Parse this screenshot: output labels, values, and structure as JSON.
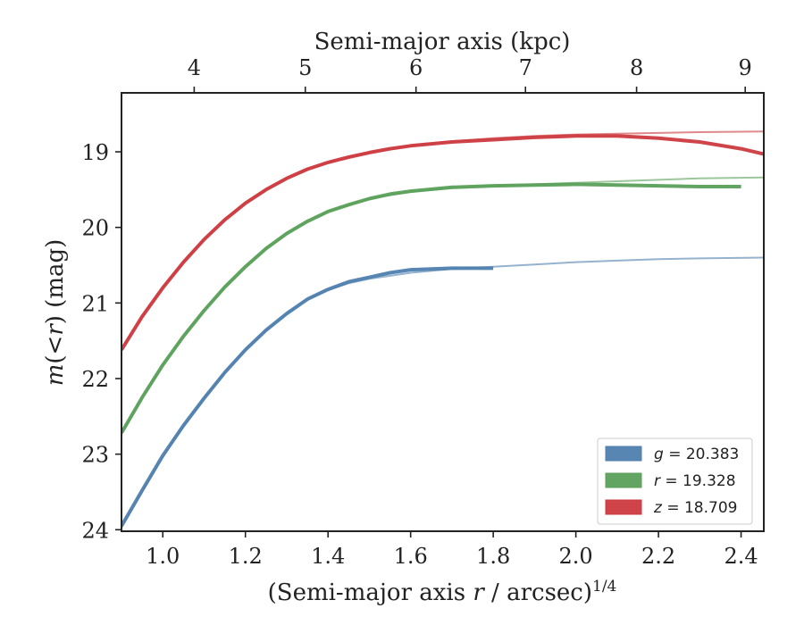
{
  "chart_data": {
    "type": "line",
    "xlabel": "(Semi-major axis r / arcsec)",
    "xlabel_sup": "1/4",
    "ylabel": "m(<r) (mag)",
    "top_xlabel": "Semi-major axis (kpc)",
    "xlim": [
      0.9,
      2.455
    ],
    "ylim": [
      24.02,
      18.22
    ],
    "y_inverted": true,
    "x_ticks": [
      1.0,
      1.2,
      1.4,
      1.6,
      1.8,
      2.0,
      2.2,
      2.4
    ],
    "x_tick_labels": [
      "1.0",
      "1.2",
      "1.4",
      "1.6",
      "1.8",
      "2.0",
      "2.2",
      "2.4"
    ],
    "y_ticks": [
      19,
      20,
      21,
      22,
      23,
      24
    ],
    "y_tick_labels": [
      "19",
      "20",
      "21",
      "22",
      "23",
      "24"
    ],
    "top_ticks": [
      4,
      5,
      6,
      7,
      8,
      9
    ],
    "top_tick_labels": [
      "4",
      "5",
      "6",
      "7",
      "8",
      "9"
    ],
    "top_ticks_x": [
      1.076,
      1.345,
      1.613,
      1.878,
      2.147,
      2.41
    ],
    "legend_position": "lower-right",
    "grid": false,
    "series": [
      {
        "name": "g = 20.383",
        "symbol": "g",
        "value": "20.383",
        "color": "#4f7faf",
        "band_width": 4,
        "x": [
          0.9,
          0.95,
          1.0,
          1.05,
          1.1,
          1.15,
          1.2,
          1.25,
          1.3,
          1.35,
          1.4,
          1.45,
          1.5,
          1.55,
          1.6,
          1.65,
          1.7,
          1.75,
          1.8
        ],
        "y": [
          23.95,
          23.48,
          23.02,
          22.62,
          22.26,
          21.92,
          21.62,
          21.36,
          21.14,
          20.95,
          20.82,
          20.72,
          20.66,
          20.6,
          20.56,
          20.55,
          20.54,
          20.54,
          20.54
        ],
        "model_x": [
          0.9,
          0.95,
          1.0,
          1.05,
          1.1,
          1.15,
          1.2,
          1.25,
          1.3,
          1.35,
          1.4,
          1.45,
          1.5,
          1.6,
          1.7,
          1.8,
          1.9,
          2.0,
          2.1,
          2.2,
          2.3,
          2.455
        ],
        "model_y": [
          23.97,
          23.5,
          23.04,
          22.63,
          22.26,
          21.92,
          21.62,
          21.36,
          21.14,
          20.95,
          20.83,
          20.74,
          20.68,
          20.6,
          20.55,
          20.52,
          20.49,
          20.46,
          20.44,
          20.42,
          20.41,
          20.4
        ]
      },
      {
        "name": "r = 19.328",
        "symbol": "r",
        "value": "19.328",
        "color": "#5aa05a",
        "band_width": 4,
        "x": [
          0.9,
          0.95,
          1.0,
          1.05,
          1.1,
          1.15,
          1.2,
          1.25,
          1.3,
          1.35,
          1.4,
          1.45,
          1.5,
          1.55,
          1.6,
          1.7,
          1.8,
          1.9,
          2.0,
          2.1,
          2.2,
          2.3,
          2.4
        ],
        "y": [
          22.72,
          22.25,
          21.82,
          21.44,
          21.1,
          20.79,
          20.52,
          20.28,
          20.08,
          19.92,
          19.79,
          19.7,
          19.62,
          19.56,
          19.52,
          19.47,
          19.45,
          19.44,
          19.43,
          19.44,
          19.45,
          19.46,
          19.46
        ],
        "model_x": [
          0.9,
          0.95,
          1.0,
          1.05,
          1.1,
          1.15,
          1.2,
          1.25,
          1.3,
          1.35,
          1.4,
          1.45,
          1.5,
          1.6,
          1.7,
          1.8,
          1.9,
          2.0,
          2.1,
          2.2,
          2.3,
          2.455
        ],
        "model_y": [
          22.72,
          22.25,
          21.82,
          21.44,
          21.1,
          20.79,
          20.52,
          20.28,
          20.08,
          19.92,
          19.79,
          19.7,
          19.62,
          19.53,
          19.48,
          19.45,
          19.43,
          19.41,
          19.39,
          19.37,
          19.35,
          19.34
        ]
      },
      {
        "name": "z = 18.709",
        "symbol": "z",
        "value": "18.709",
        "color": "#cc3a3f",
        "band_width": 4,
        "x": [
          0.9,
          0.95,
          1.0,
          1.05,
          1.1,
          1.15,
          1.2,
          1.25,
          1.3,
          1.35,
          1.4,
          1.45,
          1.5,
          1.55,
          1.6,
          1.7,
          1.8,
          1.9,
          2.0,
          2.1,
          2.2,
          2.3,
          2.4,
          2.455
        ],
        "y": [
          21.62,
          21.18,
          20.8,
          20.46,
          20.16,
          19.9,
          19.68,
          19.5,
          19.35,
          19.23,
          19.14,
          19.07,
          19.01,
          18.96,
          18.92,
          18.87,
          18.84,
          18.81,
          18.79,
          18.79,
          18.82,
          18.87,
          18.96,
          19.03
        ],
        "model_x": [
          0.9,
          0.95,
          1.0,
          1.05,
          1.1,
          1.15,
          1.2,
          1.25,
          1.3,
          1.35,
          1.4,
          1.45,
          1.5,
          1.6,
          1.7,
          1.8,
          1.9,
          2.0,
          2.1,
          2.2,
          2.3,
          2.455
        ],
        "model_y": [
          21.62,
          21.18,
          20.8,
          20.46,
          20.16,
          19.9,
          19.68,
          19.5,
          19.35,
          19.23,
          19.14,
          19.07,
          19.01,
          18.92,
          18.86,
          18.82,
          18.79,
          18.77,
          18.76,
          18.75,
          18.74,
          18.73
        ]
      }
    ]
  }
}
